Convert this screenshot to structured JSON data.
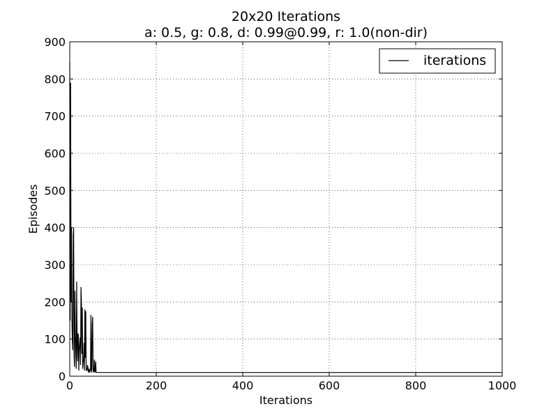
{
  "chart_data": {
    "type": "line",
    "title": "20x20 Iterations",
    "subtitle": "a: 0.5, g: 0.8, d: 0.99@0.99, r: 1.0(non-dir)",
    "xlabel": "Iterations",
    "ylabel": "Episodes",
    "xlim": [
      0,
      1000
    ],
    "ylim": [
      0,
      900
    ],
    "xticks": [
      0,
      200,
      400,
      600,
      800,
      1000
    ],
    "yticks": [
      0,
      100,
      200,
      300,
      400,
      500,
      600,
      700,
      800,
      900
    ],
    "grid": true,
    "legend_position": "top-right",
    "series": [
      {
        "name": "iterations",
        "color": "#000000",
        "x": [
          0,
          1,
          2,
          3,
          4,
          5,
          6,
          7,
          8,
          9,
          10,
          11,
          12,
          13,
          14,
          15,
          16,
          17,
          18,
          19,
          20,
          21,
          22,
          23,
          24,
          25,
          26,
          27,
          28,
          29,
          30,
          31,
          32,
          33,
          34,
          35,
          36,
          37,
          38,
          39,
          40,
          41,
          42,
          43,
          44,
          45,
          46,
          47,
          48,
          49,
          50,
          51,
          52,
          53,
          54,
          55,
          56,
          57,
          58,
          59,
          60,
          61,
          62,
          63,
          64,
          65,
          66,
          67,
          68,
          69,
          70,
          71,
          72,
          73,
          74,
          75,
          76,
          1000
        ],
        "y": [
          845,
          150,
          790,
          200,
          400,
          150,
          95,
          70,
          380,
          400,
          55,
          25,
          230,
          110,
          60,
          20,
          255,
          100,
          40,
          115,
          110,
          15,
          70,
          90,
          105,
          30,
          240,
          200,
          60,
          185,
          20,
          35,
          45,
          90,
          15,
          180,
          50,
          175,
          15,
          20,
          15,
          30,
          25,
          10,
          15,
          20,
          10,
          15,
          20,
          165,
          10,
          15,
          140,
          160,
          20,
          10,
          15,
          45,
          10,
          15,
          40,
          10,
          10,
          10,
          10,
          10,
          10,
          10,
          10,
          10,
          10,
          10,
          10,
          10,
          10,
          10,
          10,
          10
        ]
      }
    ]
  }
}
